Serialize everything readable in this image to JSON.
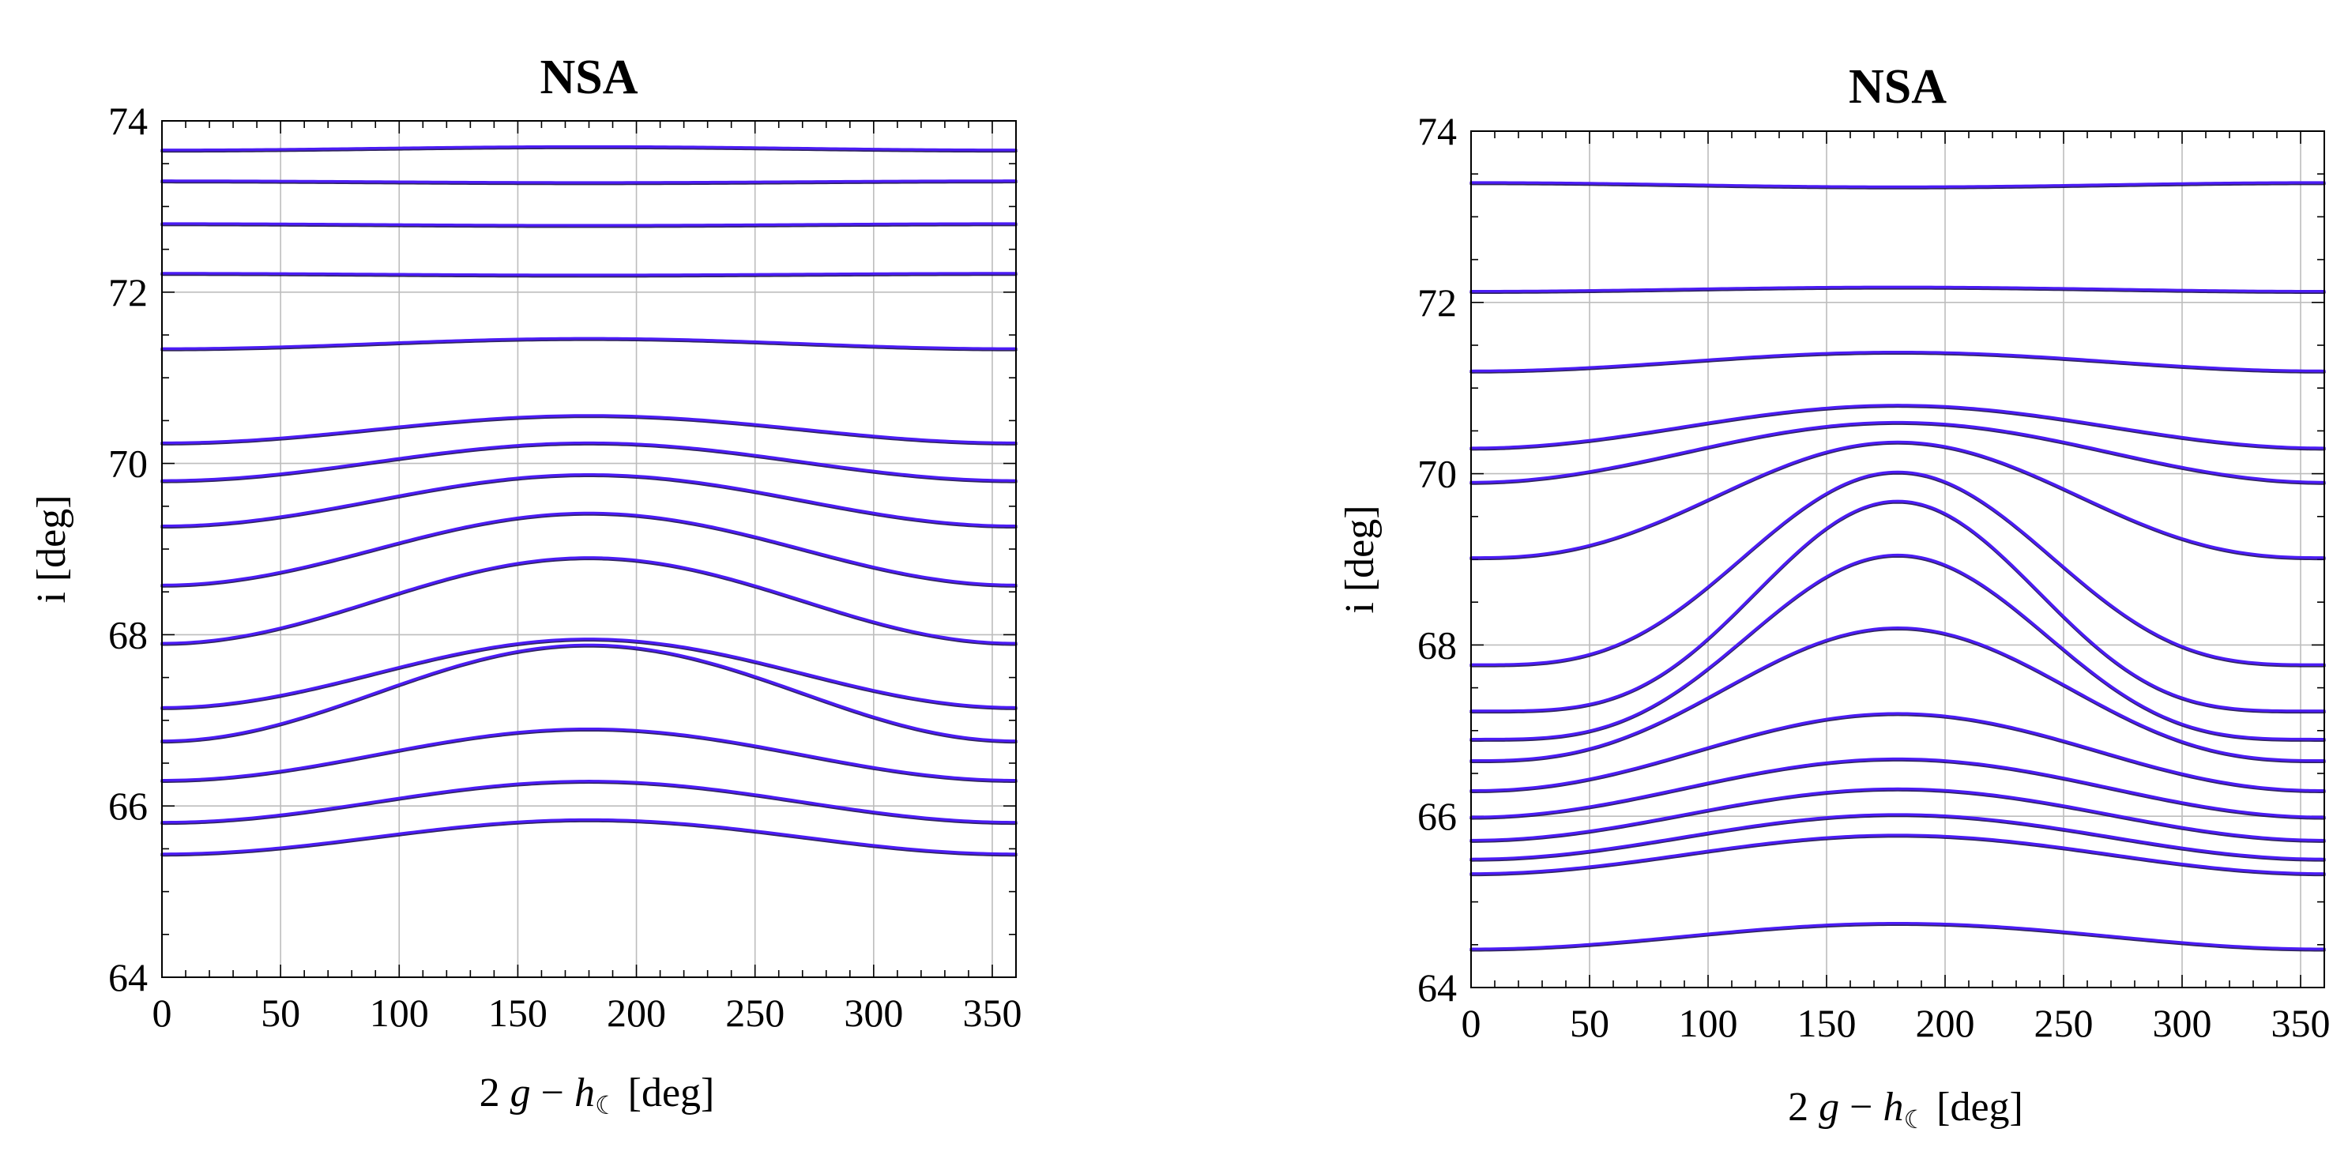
{
  "chart_data": [
    {
      "type": "line",
      "title": "NSA",
      "xlabel_parts": {
        "pre": "2 ",
        "var1": "g",
        "minus": " − ",
        "var2": "h",
        "sub": "☾",
        "post": " [deg]"
      },
      "ylabel": "i [deg]",
      "xlim": [
        0,
        360
      ],
      "ylim": [
        64,
        74
      ],
      "xticks": [
        "0",
        "50",
        "100",
        "150",
        "200",
        "250",
        "300",
        "350"
      ],
      "yticks": [
        "64",
        "66",
        "68",
        "70",
        "72",
        "74"
      ],
      "line_color": "#4b1cf5",
      "shadow_color": "#0d0040",
      "series_shape": "i(x) = i0 - A*cos(x deg)",
      "series": [
        {
          "name": "curve-1",
          "i0": 73.68,
          "A": 0.02
        },
        {
          "name": "curve-2",
          "i0": 73.29,
          "A": -0.01
        },
        {
          "name": "curve-3",
          "i0": 72.79,
          "A": -0.01
        },
        {
          "name": "curve-4",
          "i0": 72.21,
          "A": -0.01
        },
        {
          "name": "curve-5",
          "i0": 71.4,
          "A": 0.06
        },
        {
          "name": "curve-6",
          "i0": 70.4,
          "A": 0.16
        },
        {
          "name": "curve-7",
          "i0": 70.02,
          "A": 0.22
        },
        {
          "name": "curve-8",
          "i0": 69.57,
          "A": 0.3
        },
        {
          "name": "curve-9",
          "i0": 69.0,
          "A": 0.42
        },
        {
          "name": "curve-10",
          "i0": 68.4,
          "A": 0.5
        },
        {
          "name": "curve-11",
          "i0": 67.32,
          "A": 0.56
        },
        {
          "name": "curve-12",
          "i0": 67.55,
          "A": 0.4
        },
        {
          "name": "curve-13",
          "i0": 66.6,
          "A": 0.3
        },
        {
          "name": "curve-14",
          "i0": 66.05,
          "A": 0.24
        },
        {
          "name": "curve-15",
          "i0": 65.64,
          "A": 0.2
        }
      ]
    },
    {
      "type": "line",
      "title": "NSA",
      "xlabel_parts": {
        "pre": "2 ",
        "var1": "g",
        "minus": " − ",
        "var2": "h",
        "sub": "☾",
        "post": " [deg]"
      },
      "ylabel": "i [deg]",
      "xlim": [
        0,
        360
      ],
      "ylim": [
        64,
        74
      ],
      "xticks": [
        "0",
        "50",
        "100",
        "150",
        "200",
        "250",
        "300",
        "350"
      ],
      "yticks": [
        "64",
        "66",
        "68",
        "70",
        "72",
        "74"
      ],
      "line_color": "#4b1cf5",
      "shadow_color": "#0d0040",
      "series_shape": "i(x) = base + amp * bump(x), bump = 1 at 180, 0 at 0/360; exponent p sharpens the hump",
      "series": [
        {
          "name": "curve-1",
          "base": 73.4,
          "amp": -0.05,
          "p": 1
        },
        {
          "name": "curve-2",
          "base": 72.13,
          "amp": 0.05,
          "p": 1
        },
        {
          "name": "curve-3",
          "base": 71.2,
          "amp": 0.22,
          "p": 1
        },
        {
          "name": "curve-4",
          "base": 70.3,
          "amp": 0.5,
          "p": 1
        },
        {
          "name": "curve-5",
          "base": 69.9,
          "amp": 0.7,
          "p": 1
        },
        {
          "name": "curve-6",
          "base": 69.02,
          "amp": 1.35,
          "p": 1.3
        },
        {
          "name": "curve-7",
          "base": 67.77,
          "amp": 2.25,
          "p": 1.7
        },
        {
          "name": "curve-8",
          "base": 67.23,
          "amp": 2.45,
          "p": 2.0
        },
        {
          "name": "curve-9",
          "base": 66.9,
          "amp": 2.15,
          "p": 1.8
        },
        {
          "name": "curve-10",
          "base": 66.65,
          "amp": 1.55,
          "p": 1.4
        },
        {
          "name": "curve-11",
          "base": 66.3,
          "amp": 0.9,
          "p": 1.1
        },
        {
          "name": "curve-12",
          "base": 65.99,
          "amp": 0.68,
          "p": 1
        },
        {
          "name": "curve-13",
          "base": 65.72,
          "amp": 0.6,
          "p": 1
        },
        {
          "name": "curve-14",
          "base": 65.5,
          "amp": 0.52,
          "p": 1
        },
        {
          "name": "curve-15",
          "base": 65.33,
          "amp": 0.45,
          "p": 1
        },
        {
          "name": "curve-16",
          "base": 64.45,
          "amp": 0.3,
          "p": 1
        }
      ]
    }
  ]
}
